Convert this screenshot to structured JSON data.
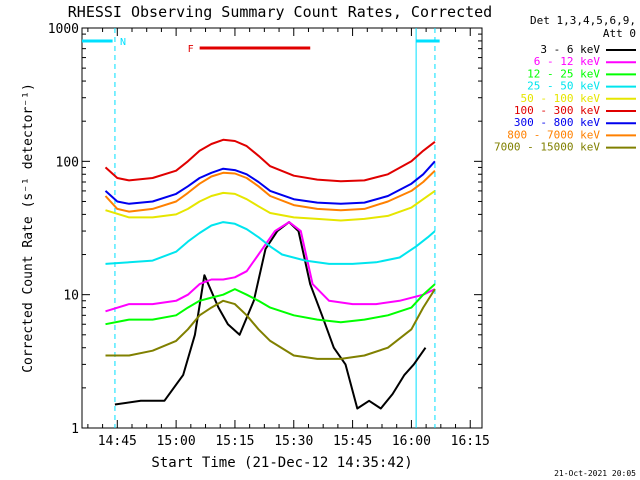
{
  "chart_data": {
    "type": "line",
    "title": "RHESSI Observing Summary Count Rates, Corrected",
    "xlabel": "Start Time (21-Dec-12 14:35:42)",
    "ylabel": "Corrected Count Rate (s⁻¹ detector⁻¹)",
    "timestamp": "21-Oct-2021 20:05",
    "y_scale": "log",
    "ylim": [
      1,
      1000
    ],
    "x_unit": "minutes",
    "xlim": [
      14.6,
      16.3
    ],
    "x_ticks": [
      {
        "value": 14.75,
        "label": "14:45"
      },
      {
        "value": 15.0,
        "label": "15:00"
      },
      {
        "value": 15.25,
        "label": "15:15"
      },
      {
        "value": 15.5,
        "label": "15:30"
      },
      {
        "value": 15.75,
        "label": "15:45"
      },
      {
        "value": 16.0,
        "label": "16:00"
      },
      {
        "value": 16.25,
        "label": "16:15"
      }
    ],
    "y_ticks": [
      {
        "value": 1,
        "label": "1"
      },
      {
        "value": 10,
        "label": "10"
      },
      {
        "value": 100,
        "label": "100"
      },
      {
        "value": 1000,
        "label": "1000"
      }
    ],
    "legend": {
      "header": [
        "Det 1,3,4,5,6,9,",
        "Att 0"
      ],
      "placement": "right"
    },
    "annotations": {
      "night_label": "N",
      "flare_label": "F",
      "night_color": "#00e0ff",
      "flare_color": "#e00000",
      "night_markers": [
        14.74,
        16.1
      ],
      "night_bars": [
        [
          14.6,
          14.73
        ],
        [
          16.02,
          16.12
        ]
      ],
      "flare_bar": [
        15.1,
        15.57
      ]
    },
    "series": [
      {
        "name": "3 - 6 keV",
        "color": "#000000",
        "points": [
          [
            14.74,
            1.5
          ],
          [
            14.85,
            1.6
          ],
          [
            14.95,
            1.6
          ],
          [
            15.03,
            2.5
          ],
          [
            15.08,
            5
          ],
          [
            15.12,
            14
          ],
          [
            15.18,
            8
          ],
          [
            15.22,
            6
          ],
          [
            15.27,
            5
          ],
          [
            15.33,
            9
          ],
          [
            15.38,
            22
          ],
          [
            15.43,
            30
          ],
          [
            15.48,
            35
          ],
          [
            15.52,
            30
          ],
          [
            15.57,
            12
          ],
          [
            15.62,
            7
          ],
          [
            15.67,
            4
          ],
          [
            15.72,
            3
          ],
          [
            15.77,
            1.4
          ],
          [
            15.82,
            1.6
          ],
          [
            15.87,
            1.4
          ],
          [
            15.92,
            1.8
          ],
          [
            15.97,
            2.5
          ],
          [
            16.01,
            3
          ],
          [
            16.06,
            4
          ]
        ]
      },
      {
        "name": "6 - 12 keV",
        "color": "#ff00ff",
        "points": [
          [
            14.7,
            7.5
          ],
          [
            14.8,
            8.5
          ],
          [
            14.9,
            8.5
          ],
          [
            15.0,
            9
          ],
          [
            15.05,
            10
          ],
          [
            15.1,
            12
          ],
          [
            15.15,
            13
          ],
          [
            15.2,
            13
          ],
          [
            15.25,
            13.5
          ],
          [
            15.3,
            15
          ],
          [
            15.35,
            20
          ],
          [
            15.42,
            30
          ],
          [
            15.48,
            35
          ],
          [
            15.53,
            30
          ],
          [
            15.58,
            12
          ],
          [
            15.65,
            9
          ],
          [
            15.75,
            8.5
          ],
          [
            15.85,
            8.5
          ],
          [
            15.95,
            9
          ],
          [
            16.05,
            10
          ],
          [
            16.1,
            11
          ]
        ]
      },
      {
        "name": "12 - 25 keV",
        "color": "#00ff00",
        "points": [
          [
            14.7,
            6
          ],
          [
            14.8,
            6.5
          ],
          [
            14.9,
            6.5
          ],
          [
            15.0,
            7
          ],
          [
            15.05,
            8
          ],
          [
            15.1,
            9
          ],
          [
            15.15,
            9.5
          ],
          [
            15.2,
            10
          ],
          [
            15.25,
            11
          ],
          [
            15.3,
            10
          ],
          [
            15.35,
            9
          ],
          [
            15.4,
            8
          ],
          [
            15.5,
            7
          ],
          [
            15.6,
            6.5
          ],
          [
            15.7,
            6.2
          ],
          [
            15.8,
            6.5
          ],
          [
            15.9,
            7
          ],
          [
            16.0,
            8
          ],
          [
            16.05,
            10
          ],
          [
            16.1,
            12
          ]
        ]
      },
      {
        "name": "25 - 50 keV",
        "color": "#00e5ee",
        "points": [
          [
            14.7,
            17
          ],
          [
            14.8,
            17.5
          ],
          [
            14.9,
            18
          ],
          [
            15.0,
            21
          ],
          [
            15.05,
            25
          ],
          [
            15.1,
            29
          ],
          [
            15.15,
            33
          ],
          [
            15.2,
            35
          ],
          [
            15.25,
            34
          ],
          [
            15.3,
            31
          ],
          [
            15.35,
            27
          ],
          [
            15.4,
            23
          ],
          [
            15.45,
            20
          ],
          [
            15.55,
            18
          ],
          [
            15.65,
            17
          ],
          [
            15.75,
            17
          ],
          [
            15.85,
            17.5
          ],
          [
            15.95,
            19
          ],
          [
            16.02,
            23
          ],
          [
            16.07,
            27
          ],
          [
            16.1,
            30
          ]
        ]
      },
      {
        "name": "50 - 100 keV",
        "color": "#e6e600",
        "points": [
          [
            14.7,
            43
          ],
          [
            14.8,
            38
          ],
          [
            14.9,
            38
          ],
          [
            15.0,
            40
          ],
          [
            15.05,
            44
          ],
          [
            15.1,
            50
          ],
          [
            15.15,
            55
          ],
          [
            15.2,
            58
          ],
          [
            15.25,
            57
          ],
          [
            15.3,
            52
          ],
          [
            15.35,
            46
          ],
          [
            15.4,
            41
          ],
          [
            15.5,
            38
          ],
          [
            15.6,
            37
          ],
          [
            15.7,
            36
          ],
          [
            15.8,
            37
          ],
          [
            15.9,
            39
          ],
          [
            16.0,
            45
          ],
          [
            16.05,
            52
          ],
          [
            16.1,
            60
          ]
        ]
      },
      {
        "name": "100 - 300 keV",
        "color": "#e00000",
        "points": [
          [
            14.7,
            90
          ],
          [
            14.75,
            75
          ],
          [
            14.8,
            72
          ],
          [
            14.9,
            75
          ],
          [
            15.0,
            85
          ],
          [
            15.05,
            100
          ],
          [
            15.1,
            120
          ],
          [
            15.15,
            135
          ],
          [
            15.2,
            145
          ],
          [
            15.25,
            142
          ],
          [
            15.3,
            130
          ],
          [
            15.35,
            110
          ],
          [
            15.4,
            92
          ],
          [
            15.5,
            78
          ],
          [
            15.6,
            73
          ],
          [
            15.7,
            71
          ],
          [
            15.8,
            72
          ],
          [
            15.9,
            80
          ],
          [
            16.0,
            100
          ],
          [
            16.05,
            120
          ],
          [
            16.1,
            140
          ]
        ]
      },
      {
        "name": "300 - 800 keV",
        "color": "#0000ee",
        "points": [
          [
            14.7,
            60
          ],
          [
            14.75,
            50
          ],
          [
            14.8,
            48
          ],
          [
            14.9,
            50
          ],
          [
            15.0,
            57
          ],
          [
            15.05,
            65
          ],
          [
            15.1,
            75
          ],
          [
            15.15,
            82
          ],
          [
            15.2,
            88
          ],
          [
            15.25,
            86
          ],
          [
            15.3,
            80
          ],
          [
            15.35,
            70
          ],
          [
            15.4,
            60
          ],
          [
            15.5,
            52
          ],
          [
            15.6,
            49
          ],
          [
            15.7,
            48
          ],
          [
            15.8,
            49
          ],
          [
            15.9,
            55
          ],
          [
            16.0,
            68
          ],
          [
            16.05,
            80
          ],
          [
            16.1,
            100
          ]
        ]
      },
      {
        "name": "800 - 7000 keV",
        "color": "#ff8000",
        "points": [
          [
            14.7,
            55
          ],
          [
            14.75,
            44
          ],
          [
            14.8,
            42
          ],
          [
            14.9,
            44
          ],
          [
            15.0,
            50
          ],
          [
            15.05,
            58
          ],
          [
            15.1,
            68
          ],
          [
            15.15,
            77
          ],
          [
            15.2,
            82
          ],
          [
            15.25,
            81
          ],
          [
            15.3,
            75
          ],
          [
            15.35,
            65
          ],
          [
            15.4,
            55
          ],
          [
            15.5,
            47
          ],
          [
            15.6,
            44
          ],
          [
            15.7,
            43
          ],
          [
            15.8,
            44
          ],
          [
            15.9,
            50
          ],
          [
            16.0,
            60
          ],
          [
            16.05,
            70
          ],
          [
            16.1,
            85
          ]
        ]
      },
      {
        "name": "7000 - 15000 keV",
        "color": "#808000",
        "points": [
          [
            14.7,
            3.5
          ],
          [
            14.8,
            3.5
          ],
          [
            14.9,
            3.8
          ],
          [
            15.0,
            4.5
          ],
          [
            15.05,
            5.5
          ],
          [
            15.1,
            7
          ],
          [
            15.15,
            8
          ],
          [
            15.2,
            9
          ],
          [
            15.25,
            8.5
          ],
          [
            15.3,
            7
          ],
          [
            15.35,
            5.5
          ],
          [
            15.4,
            4.5
          ],
          [
            15.5,
            3.5
          ],
          [
            15.6,
            3.3
          ],
          [
            15.7,
            3.3
          ],
          [
            15.8,
            3.5
          ],
          [
            15.9,
            4
          ],
          [
            16.0,
            5.5
          ],
          [
            16.05,
            8
          ],
          [
            16.1,
            11
          ]
        ]
      }
    ]
  }
}
